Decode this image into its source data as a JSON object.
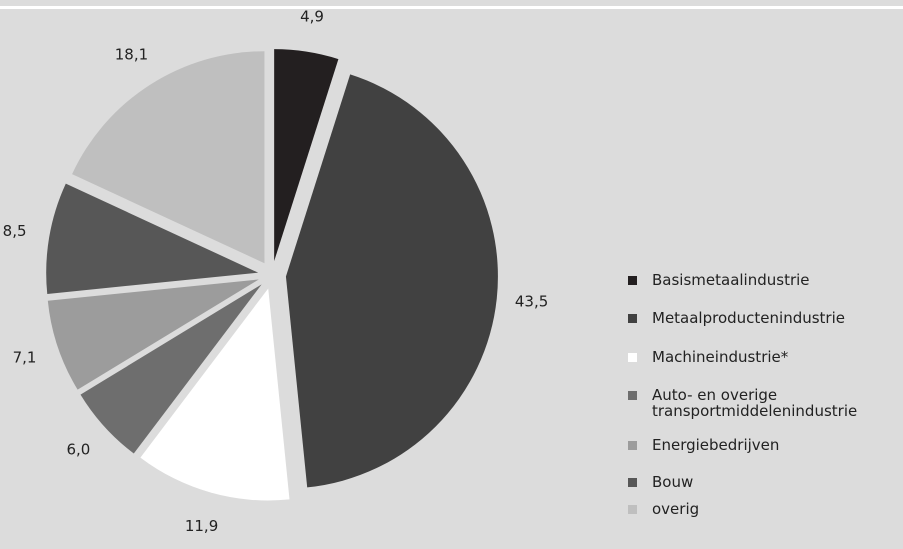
{
  "chart_data": {
    "type": "pie",
    "categories": [
      "Basismetaalindustrie",
      "Metaalproductenindustrie",
      "Machineindustrie*",
      "Auto- en overige transportmiddelenindustrie",
      "Energiebedrijven",
      "Bouw",
      "overig"
    ],
    "values": [
      4.9,
      43.5,
      11.9,
      6.0,
      7.1,
      8.5,
      18.1
    ],
    "value_labels": [
      "4,9",
      "43,5",
      "11,9",
      "6,0",
      "7,1",
      "8,5",
      "18,1"
    ],
    "colors": [
      "#231f20",
      "#414141",
      "#ffffff",
      "#6e6e6e",
      "#9c9c9c",
      "#575757",
      "#bfbfbf"
    ]
  }
}
